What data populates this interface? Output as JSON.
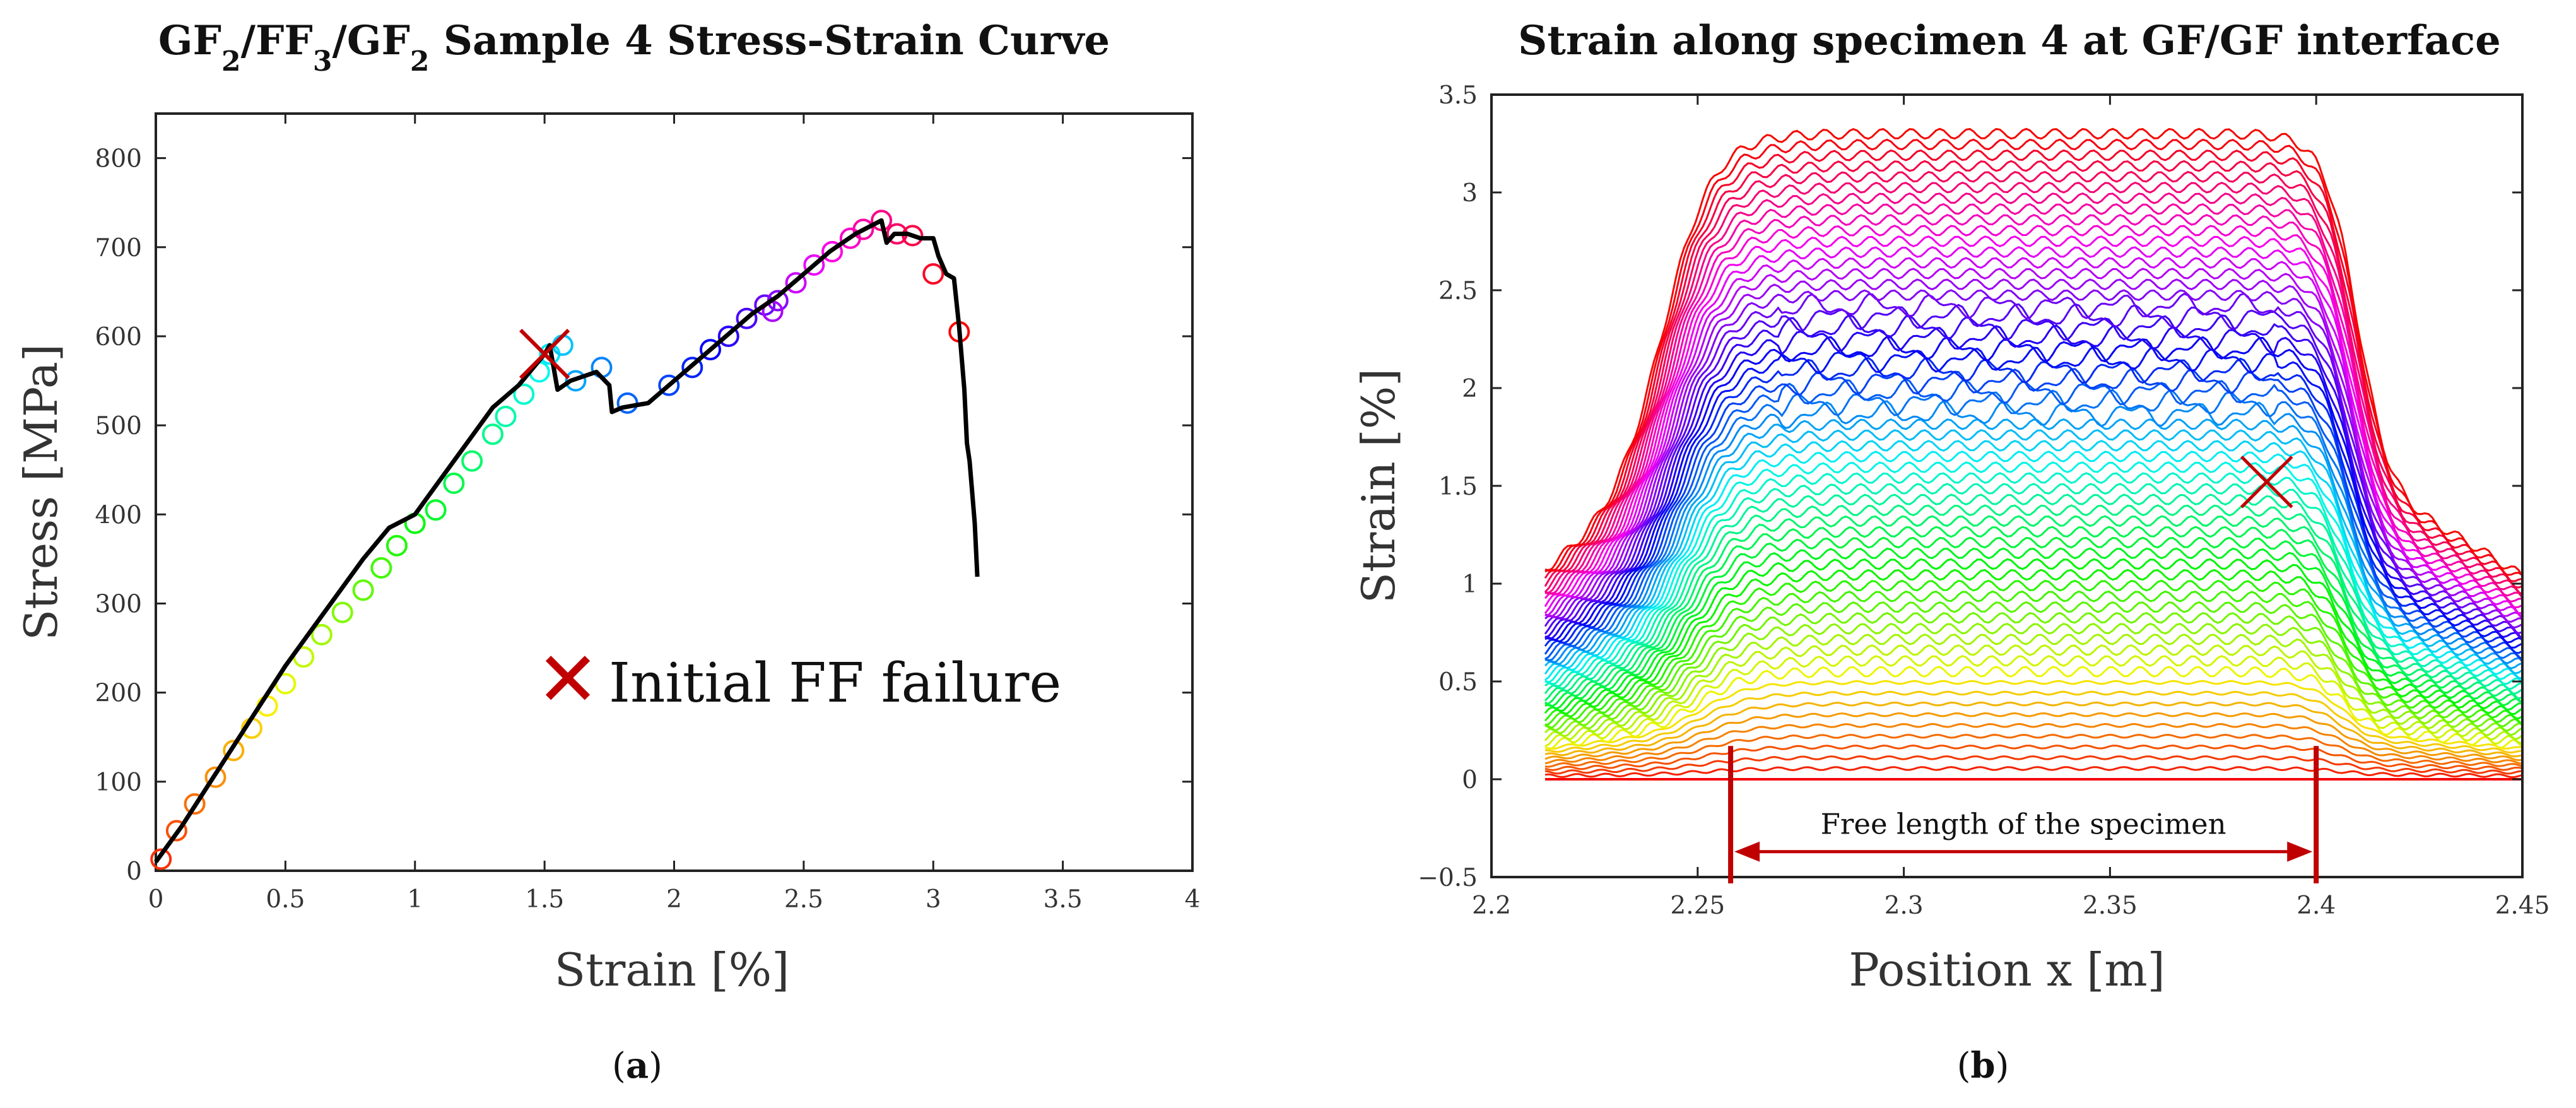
{
  "chart_data": [
    {
      "panel": "(a)",
      "type": "line",
      "title": "GF2/FF3/GF2 Sample 4 Stress-Strain Curve",
      "title_parts": [
        {
          "text": "GF",
          "sub": false
        },
        {
          "text": "2",
          "sub": true
        },
        {
          "text": "/FF",
          "sub": false
        },
        {
          "text": "3",
          "sub": true
        },
        {
          "text": "/GF",
          "sub": false
        },
        {
          "text": "2",
          "sub": true
        },
        {
          "text": " Sample 4 Stress-Strain Curve",
          "sub": false
        }
      ],
      "xlabel": "Strain [%]",
      "ylabel": "Stress [MPa]",
      "xlim": [
        0,
        4
      ],
      "ylim": [
        0,
        850
      ],
      "xticks": [
        0,
        0.5,
        1,
        1.5,
        2,
        2.5,
        3,
        3.5,
        4
      ],
      "xtick_labels": [
        "0",
        "0.5",
        "1",
        "1.5",
        "2",
        "2.5",
        "3",
        "3.5",
        "4"
      ],
      "yticks": [
        0,
        100,
        200,
        300,
        400,
        500,
        600,
        700,
        800
      ],
      "ytick_labels": [
        "0",
        "100",
        "200",
        "300",
        "400",
        "500",
        "600",
        "700",
        "800"
      ],
      "grid": false,
      "series": [
        {
          "color": "#000000",
          "x": [
            0.0,
            0.1,
            0.2,
            0.3,
            0.4,
            0.5,
            0.6,
            0.7,
            0.8,
            0.9,
            1.0,
            1.1,
            1.2,
            1.3,
            1.4,
            1.5,
            1.52,
            1.55,
            1.6,
            1.65,
            1.7,
            1.75,
            1.76,
            1.8,
            1.9,
            2.0,
            2.1,
            2.2,
            2.3,
            2.4,
            2.5,
            2.6,
            2.7,
            2.8,
            2.82,
            2.85,
            2.9,
            2.95,
            3.0,
            3.02,
            3.05,
            3.08,
            3.1,
            3.12,
            3.13,
            3.14,
            3.16,
            3.17
          ],
          "y": [
            10,
            50,
            95,
            140,
            185,
            230,
            270,
            310,
            350,
            385,
            400,
            440,
            480,
            520,
            545,
            580,
            590,
            540,
            550,
            555,
            560,
            545,
            515,
            520,
            525,
            550,
            575,
            600,
            625,
            645,
            670,
            695,
            715,
            730,
            705,
            715,
            715,
            710,
            710,
            690,
            670,
            665,
            610,
            540,
            480,
            460,
            390,
            330
          ]
        }
      ],
      "markers": {
        "x": [
          0.02,
          0.08,
          0.15,
          0.23,
          0.3,
          0.37,
          0.43,
          0.5,
          0.57,
          0.64,
          0.72,
          0.8,
          0.87,
          0.93,
          1.0,
          1.08,
          1.15,
          1.22,
          1.3,
          1.35,
          1.42,
          1.48,
          1.52,
          1.57,
          1.62,
          1.72,
          1.82,
          1.98,
          2.07,
          2.14,
          2.21,
          2.28,
          2.35,
          2.4,
          2.38,
          2.47,
          2.54,
          2.61,
          2.68,
          2.73,
          2.8,
          2.86,
          2.92,
          3.0,
          3.1
        ],
        "y": [
          13,
          45,
          75,
          105,
          135,
          160,
          185,
          210,
          240,
          265,
          290,
          315,
          340,
          365,
          390,
          405,
          435,
          460,
          490,
          510,
          535,
          560,
          580,
          590,
          550,
          565,
          525,
          545,
          565,
          585,
          600,
          620,
          635,
          640,
          628,
          660,
          680,
          695,
          710,
          720,
          730,
          715,
          713,
          670,
          605
        ]
      },
      "annotation": {
        "symbol": "✕",
        "label": "Initial FF failure",
        "x": 1.5,
        "y": 580,
        "color": "#c00000"
      }
    },
    {
      "panel": "(b)",
      "type": "line",
      "title": "Strain along specimen 4 at GF/GF interface",
      "xlabel": "Position x [m]",
      "ylabel": "Strain [%]",
      "xlim": [
        2.2,
        2.45
      ],
      "ylim": [
        -0.5,
        3.5
      ],
      "xticks": [
        2.2,
        2.25,
        2.3,
        2.35,
        2.4,
        2.45
      ],
      "xtick_labels": [
        "2.2",
        "2.25",
        "2.3",
        "2.35",
        "2.4",
        "2.45"
      ],
      "yticks": [
        -0.5,
        0,
        0.5,
        1,
        1.5,
        2,
        2.5,
        3,
        3.5
      ],
      "ytick_labels": [
        "−0.5",
        "0",
        "0.5",
        "1",
        "1.5",
        "2",
        "2.5",
        "3",
        "3.5"
      ],
      "grid": false,
      "profile_x_start": 2.213,
      "profile_x_end": 2.45,
      "profile_count": 60,
      "profile_max_strain": 3.3,
      "colormap": "red-to-magenta hue sweep (red → yellow → green → cyan → blue → magenta → red)",
      "failure_marker": {
        "symbol": "✕",
        "x": 2.388,
        "y": 1.52,
        "color": "#c00000"
      },
      "free_length": {
        "label": "Free length of the specimen",
        "x_start": 2.258,
        "x_end": 2.4,
        "y_arrow": -0.37,
        "color": "#c00000"
      }
    }
  ]
}
